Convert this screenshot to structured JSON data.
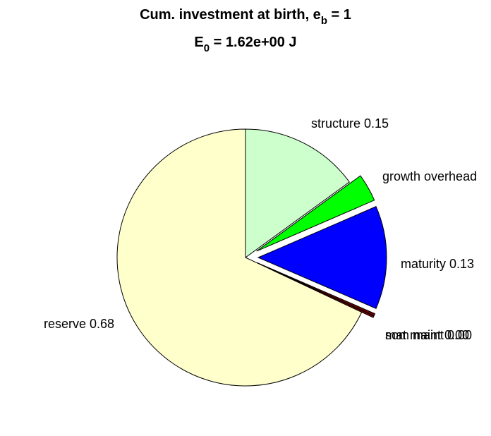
{
  "chart_data": {
    "type": "pie",
    "title": {
      "line1_prefix": "Cum. investment at birth, e",
      "line1_sub": "b",
      "line1_suffix": " = 1",
      "line2_prefix": "E",
      "line2_sub": "0",
      "line2_suffix": " = 1.62e+00 J"
    },
    "slices": [
      {
        "label": "structure 0.15",
        "value": 0.15,
        "color": "#CCFFCC",
        "exploded": false
      },
      {
        "label": "growth overhead",
        "value": 0.035,
        "color": "#00FF00",
        "exploded": true
      },
      {
        "label": "maturity 0.13",
        "value": 0.13,
        "color": "#0000FF",
        "exploded": true
      },
      {
        "label": "som maint 0.00",
        "value": 0.003,
        "color": "#660000",
        "exploded": true
      },
      {
        "label": "mat maint 0.00",
        "value": 0.002,
        "color": "#8B0000",
        "exploded": true
      },
      {
        "label": "reserve 0.68",
        "value": 0.68,
        "color": "#FFFFCC",
        "exploded": false
      }
    ]
  }
}
